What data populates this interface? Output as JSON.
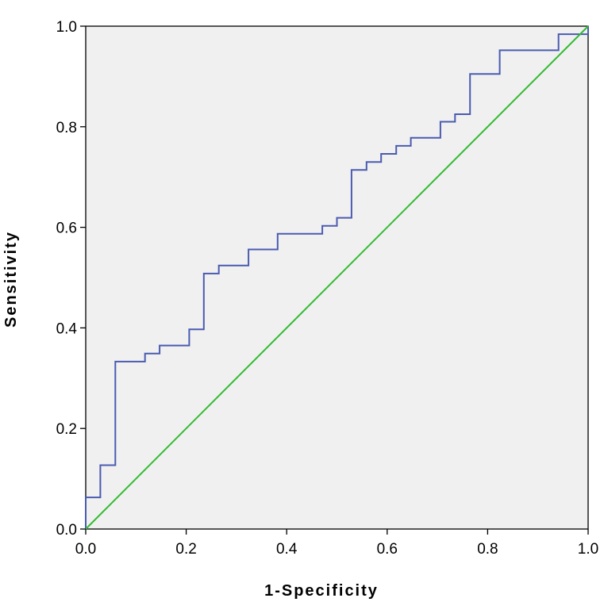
{
  "chart_data": {
    "type": "line",
    "title": "",
    "xlabel": "1-Specificity",
    "ylabel": "Sensitivity",
    "xlim": [
      0,
      1
    ],
    "ylim": [
      0,
      1
    ],
    "xticks": [
      "0.0",
      "0.2",
      "0.4",
      "0.6",
      "0.8",
      "1.0"
    ],
    "yticks": [
      "0.0",
      "0.2",
      "0.4",
      "0.6",
      "0.8",
      "1.0"
    ],
    "grid": false,
    "background_color": "#f0f0f0",
    "series": [
      {
        "color": "#4a5bb0",
        "x": [
          0.0,
          0.0,
          0.029,
          0.029,
          0.059,
          0.059,
          0.118,
          0.118,
          0.147,
          0.147,
          0.206,
          0.206,
          0.235,
          0.235,
          0.265,
          0.265,
          0.324,
          0.324,
          0.382,
          0.382,
          0.471,
          0.471,
          0.5,
          0.5,
          0.529,
          0.529,
          0.559,
          0.559,
          0.588,
          0.588,
          0.618,
          0.618,
          0.647,
          0.647,
          0.706,
          0.706,
          0.735,
          0.735,
          0.765,
          0.765,
          0.824,
          0.824,
          0.941,
          0.941,
          1.0,
          1.0
        ],
        "y": [
          0.0,
          0.063,
          0.063,
          0.127,
          0.127,
          0.333,
          0.333,
          0.349,
          0.349,
          0.365,
          0.365,
          0.397,
          0.397,
          0.508,
          0.508,
          0.524,
          0.524,
          0.556,
          0.556,
          0.587,
          0.587,
          0.603,
          0.603,
          0.619,
          0.619,
          0.714,
          0.714,
          0.73,
          0.73,
          0.746,
          0.746,
          0.762,
          0.762,
          0.778,
          0.778,
          0.81,
          0.81,
          0.825,
          0.825,
          0.905,
          0.905,
          0.952,
          0.952,
          0.984,
          0.984,
          1.0
        ]
      },
      {
        "color": "#33bb33",
        "x": [
          0,
          1
        ],
        "y": [
          0,
          1
        ]
      }
    ]
  }
}
